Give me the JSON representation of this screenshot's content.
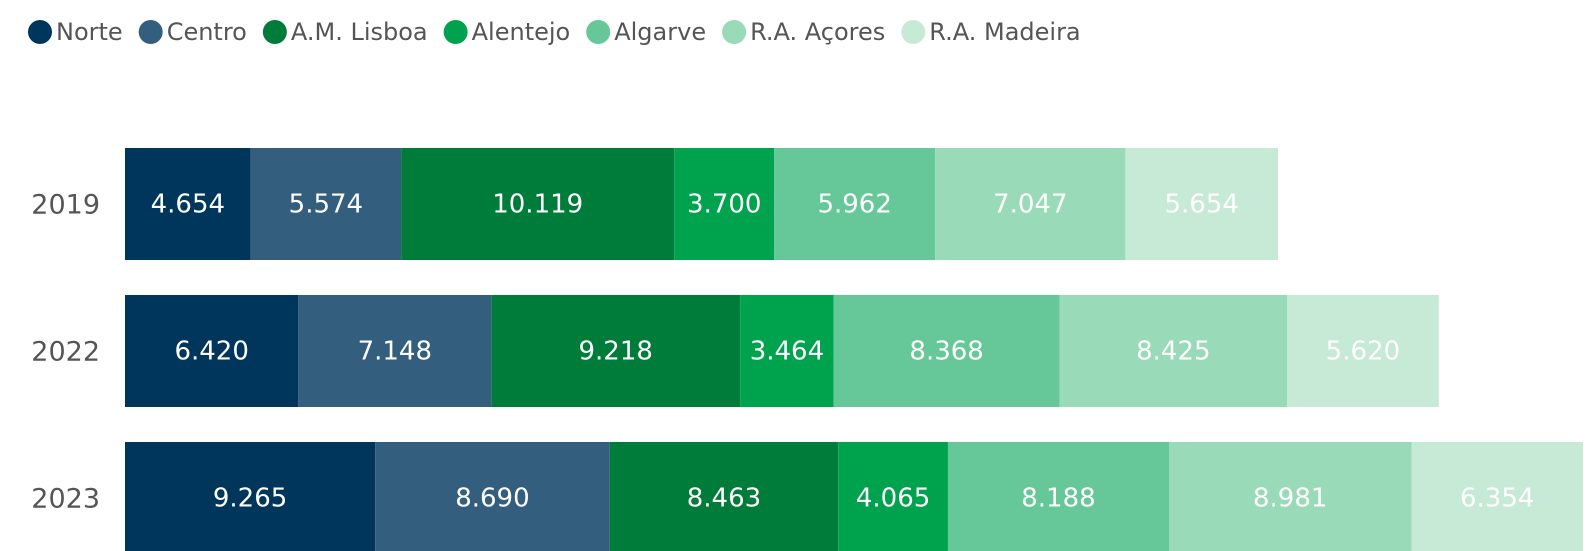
{
  "chart_data": {
    "type": "stacked_bar_horizontal",
    "categories": [
      "2019",
      "2022",
      "2023"
    ],
    "series": [
      {
        "name": "Norte",
        "color": "#00365b",
        "values": [
          4654,
          6420,
          9265
        ],
        "value_labels": [
          "4.654",
          "6.420",
          "9.265"
        ]
      },
      {
        "name": "Centro",
        "color": "#335e7e",
        "values": [
          5574,
          7148,
          8690
        ],
        "value_labels": [
          "5.574",
          "7.148",
          "8.690"
        ]
      },
      {
        "name": "A.M. Lisboa",
        "color": "#007c3a",
        "values": [
          10119,
          9218,
          8463
        ],
        "value_labels": [
          "10.119",
          "9.218",
          "8.463"
        ]
      },
      {
        "name": "Alentejo",
        "color": "#00a34d",
        "values": [
          3700,
          3464,
          4065
        ],
        "value_labels": [
          "3.700",
          "3.464",
          "4.065"
        ]
      },
      {
        "name": "Algarve",
        "color": "#66c899",
        "values": [
          5962,
          8368,
          8188
        ],
        "value_labels": [
          "5.962",
          "8.368",
          "8.188"
        ]
      },
      {
        "name": "R.A. Açores",
        "color": "#99dbb8",
        "values": [
          7047,
          8425,
          8981
        ],
        "value_labels": [
          "7.047",
          "8.425",
          "8.981"
        ]
      },
      {
        "name": "R.A. Madeira",
        "color": "#c6ead6",
        "values": [
          5654,
          5620,
          6354
        ],
        "value_labels": [
          "5.654",
          "5.620",
          "6.354"
        ]
      }
    ]
  }
}
